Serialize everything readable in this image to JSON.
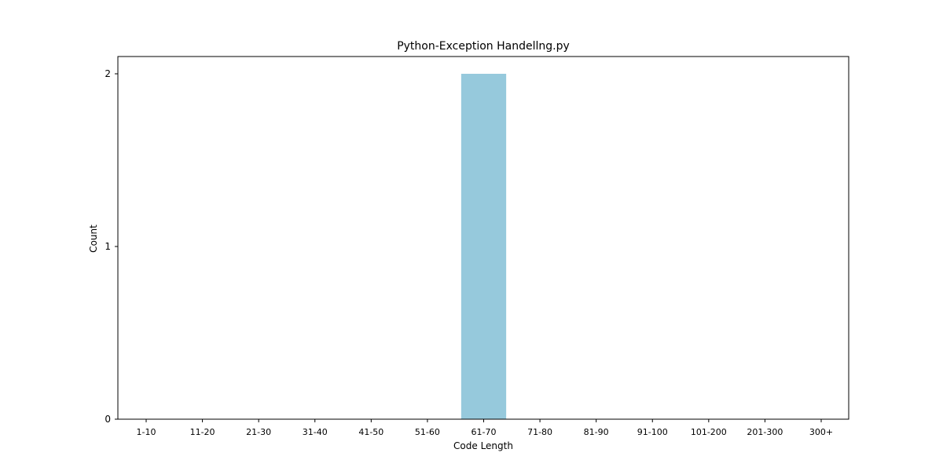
{
  "chart_data": {
    "type": "bar",
    "title": "Python-Exception Handellng.py",
    "xlabel": "Code Length",
    "ylabel": "Count",
    "categories": [
      "1-10",
      "11-20",
      "21-30",
      "31-40",
      "41-50",
      "51-60",
      "61-70",
      "71-80",
      "81-90",
      "91-100",
      "101-200",
      "201-300",
      "300+"
    ],
    "values": [
      0,
      0,
      0,
      0,
      0,
      0,
      2,
      0,
      0,
      0,
      0,
      0,
      0
    ],
    "yticks": [
      0,
      1,
      2
    ],
    "ylim": [
      0,
      2.1
    ],
    "bar_color": "#96c9dc",
    "grid": false,
    "legend": "none"
  }
}
